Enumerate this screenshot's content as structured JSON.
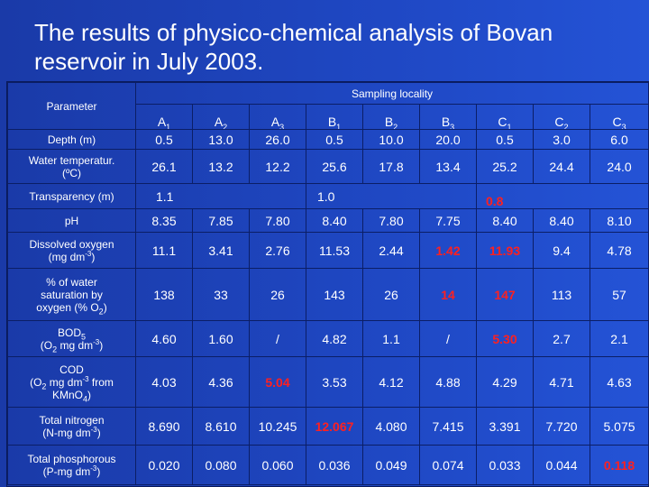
{
  "title": "The results of physico-chemical analysis of Bovan reservoir in July 2003.",
  "table": {
    "param_header": "Parameter",
    "group_header": "Sampling locality",
    "columns": [
      {
        "letter": "A",
        "sub": "1"
      },
      {
        "letter": "A",
        "sub": "2"
      },
      {
        "letter": "A",
        "sub": "3"
      },
      {
        "letter": "B",
        "sub": "1"
      },
      {
        "letter": "B",
        "sub": "2"
      },
      {
        "letter": "B",
        "sub": "3"
      },
      {
        "letter": "C",
        "sub": "1"
      },
      {
        "letter": "C",
        "sub": "2"
      },
      {
        "letter": "C",
        "sub": "3"
      }
    ],
    "rows": {
      "depth": {
        "label": "Depth (m)",
        "values": [
          "0.5",
          "13.0",
          "26.0",
          "0.5",
          "10.0",
          "20.0",
          "0.5",
          "3.0",
          "6.0"
        ]
      },
      "water_temp": {
        "line1": "Water temperatur.",
        "line2": "(ºC)",
        "values": [
          "26.1",
          "13.2",
          "12.2",
          "25.6",
          "17.8",
          "13.4",
          "25.2",
          "24.4",
          "24.0"
        ]
      },
      "transparency": {
        "label": "Transparency (m)",
        "values": [
          "1.1",
          "1.0",
          "0.8"
        ]
      },
      "ph": {
        "label": "pH",
        "values": [
          "8.35",
          "7.85",
          "7.80",
          "8.40",
          "7.80",
          "7.75",
          "8.40",
          "8.40",
          "8.10"
        ]
      },
      "dissolved_oxygen": {
        "line1": "Dissolved oxygen",
        "line2a": "(mg dm",
        "line2sup": "-3",
        "line2b": ")",
        "values": [
          "11.1",
          "3.41",
          "2.76",
          "11.53",
          "2.44",
          "1.42",
          "11.93",
          "9.4",
          "4.78"
        ]
      },
      "saturation": {
        "line1": "% of water",
        "line2": "saturation by",
        "line3a": "oxygen (% O",
        "line3sub": "2",
        "line3b": ")",
        "values": [
          "138",
          "33",
          "26",
          "143",
          "26",
          "14",
          "147",
          "113",
          "57"
        ]
      },
      "bod": {
        "line1a": "BOD",
        "line1sub": "5",
        "line2a": "(O",
        "line2sub": "2",
        "line2b": " mg dm",
        "line2sup": "-3",
        "line2c": ")",
        "values": [
          "4.60",
          "1.60",
          "/",
          "4.82",
          "1.1",
          "/",
          "5.30",
          "2.7",
          "2.1"
        ]
      },
      "cod": {
        "line1": "COD",
        "line2a": "(O",
        "line2sub": "2",
        "line2b": " mg dm",
        "line2sup": "-3",
        "line2c": " from",
        "line3a": "KMnO",
        "line3sub": "4",
        "line3b": ")",
        "values": [
          "4.03",
          "4.36",
          "5.04",
          "3.53",
          "4.12",
          "4.88",
          "4.29",
          "4.71",
          "4.63"
        ]
      },
      "nitrogen": {
        "line1": "Total nitrogen",
        "line2a": "(N-mg dm",
        "line2sup": "-3",
        "line2b": ")",
        "values": [
          "8.690",
          "8.610",
          "10.245",
          "12.067",
          "4.080",
          "7.415",
          "3.391",
          "7.720",
          "5.075"
        ]
      },
      "phosphorus": {
        "line1": "Total phosphorous",
        "line2a": "(P-mg dm",
        "line2sup": "-3",
        "line2b": ")",
        "values": [
          "0.020",
          "0.080",
          "0.060",
          "0.036",
          "0.049",
          "0.074",
          "0.033",
          "0.044",
          "0.118"
        ]
      }
    },
    "highlight_color": "#ff2020"
  }
}
